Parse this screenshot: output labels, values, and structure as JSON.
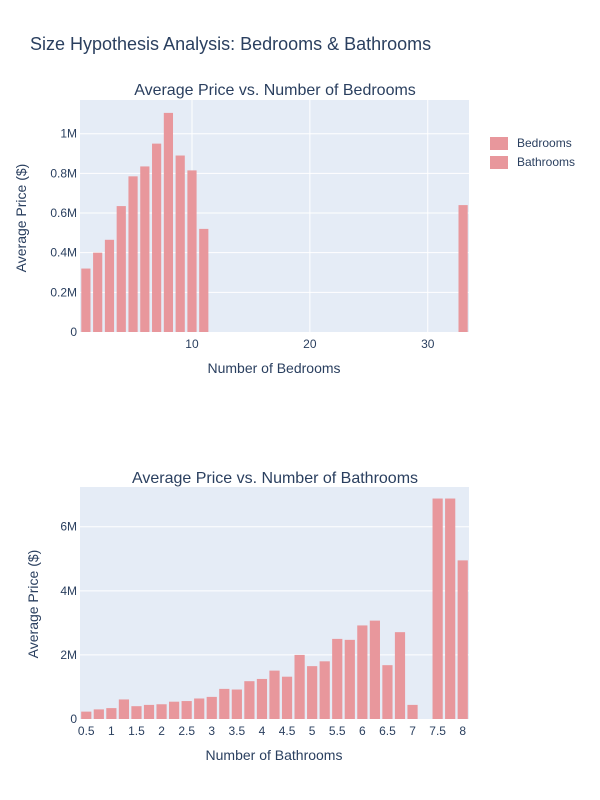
{
  "title": "Size Hypothesis Analysis: Bedrooms & Bathrooms",
  "colors": {
    "bar": "#e8979c",
    "plot_bg": "#e5ecf6",
    "grid": "#ffffff",
    "text": "#2a3f5f"
  },
  "legend": {
    "placement": "top-right",
    "items": [
      "Bedrooms",
      "Bathrooms"
    ]
  },
  "chart_data": [
    {
      "type": "bar",
      "title": "Average Price vs. Number of Bedrooms",
      "xlabel": "Number of Bedrooms",
      "ylabel": "Average Price ($)",
      "series_name": "Bedrooms",
      "x": [
        1,
        2,
        3,
        4,
        5,
        6,
        7,
        8,
        9,
        10,
        11,
        33
      ],
      "values": [
        320000,
        400000,
        465000,
        635000,
        785000,
        835000,
        950000,
        1105000,
        890000,
        815000,
        520000,
        640000
      ],
      "xlim": [
        0.5,
        33.5
      ],
      "ylim": [
        0,
        1170000
      ],
      "yticks": [
        0,
        200000,
        400000,
        600000,
        800000,
        1000000
      ],
      "ytick_labels": [
        "0",
        "0.2M",
        "0.4M",
        "0.6M",
        "0.8M",
        "1M"
      ],
      "xticks": [
        10,
        20,
        30
      ],
      "xtick_labels": [
        "10",
        "20",
        "30"
      ],
      "grid": true
    },
    {
      "type": "bar",
      "title": "Average Price vs. Number of Bathrooms",
      "xlabel": "Number of Bathrooms",
      "ylabel": "Average Price ($)",
      "series_name": "Bathrooms",
      "x": [
        0.5,
        0.75,
        1,
        1.25,
        1.5,
        1.75,
        2,
        2.25,
        2.5,
        2.75,
        3,
        3.25,
        3.5,
        3.75,
        4,
        4.25,
        4.5,
        4.75,
        5,
        5.25,
        5.5,
        5.75,
        6,
        6.25,
        6.5,
        6.75,
        7,
        7.5,
        7.75,
        8
      ],
      "values": [
        230000,
        300000,
        340000,
        610000,
        400000,
        440000,
        460000,
        540000,
        560000,
        640000,
        690000,
        940000,
        920000,
        1180000,
        1250000,
        1510000,
        1320000,
        2000000,
        1650000,
        1800000,
        2500000,
        2470000,
        2920000,
        3070000,
        1680000,
        2710000,
        440000,
        6880000,
        6880000,
        4950000
      ],
      "xlim": [
        0.375,
        8.125
      ],
      "ylim": [
        0,
        7240000
      ],
      "yticks": [
        0,
        2000000,
        4000000,
        6000000
      ],
      "ytick_labels": [
        "0",
        "2M",
        "4M",
        "6M"
      ],
      "xticks": [
        0.5,
        1,
        1.5,
        2,
        2.5,
        3,
        3.5,
        4,
        4.5,
        5,
        5.5,
        6,
        6.5,
        7,
        7.5,
        8
      ],
      "xtick_labels": [
        "0.5",
        "1",
        "1.5",
        "2",
        "2.5",
        "3",
        "3.5",
        "4",
        "4.5",
        "5",
        "5.5",
        "6",
        "6.5",
        "7",
        "7.5",
        "8"
      ],
      "grid": true
    }
  ]
}
